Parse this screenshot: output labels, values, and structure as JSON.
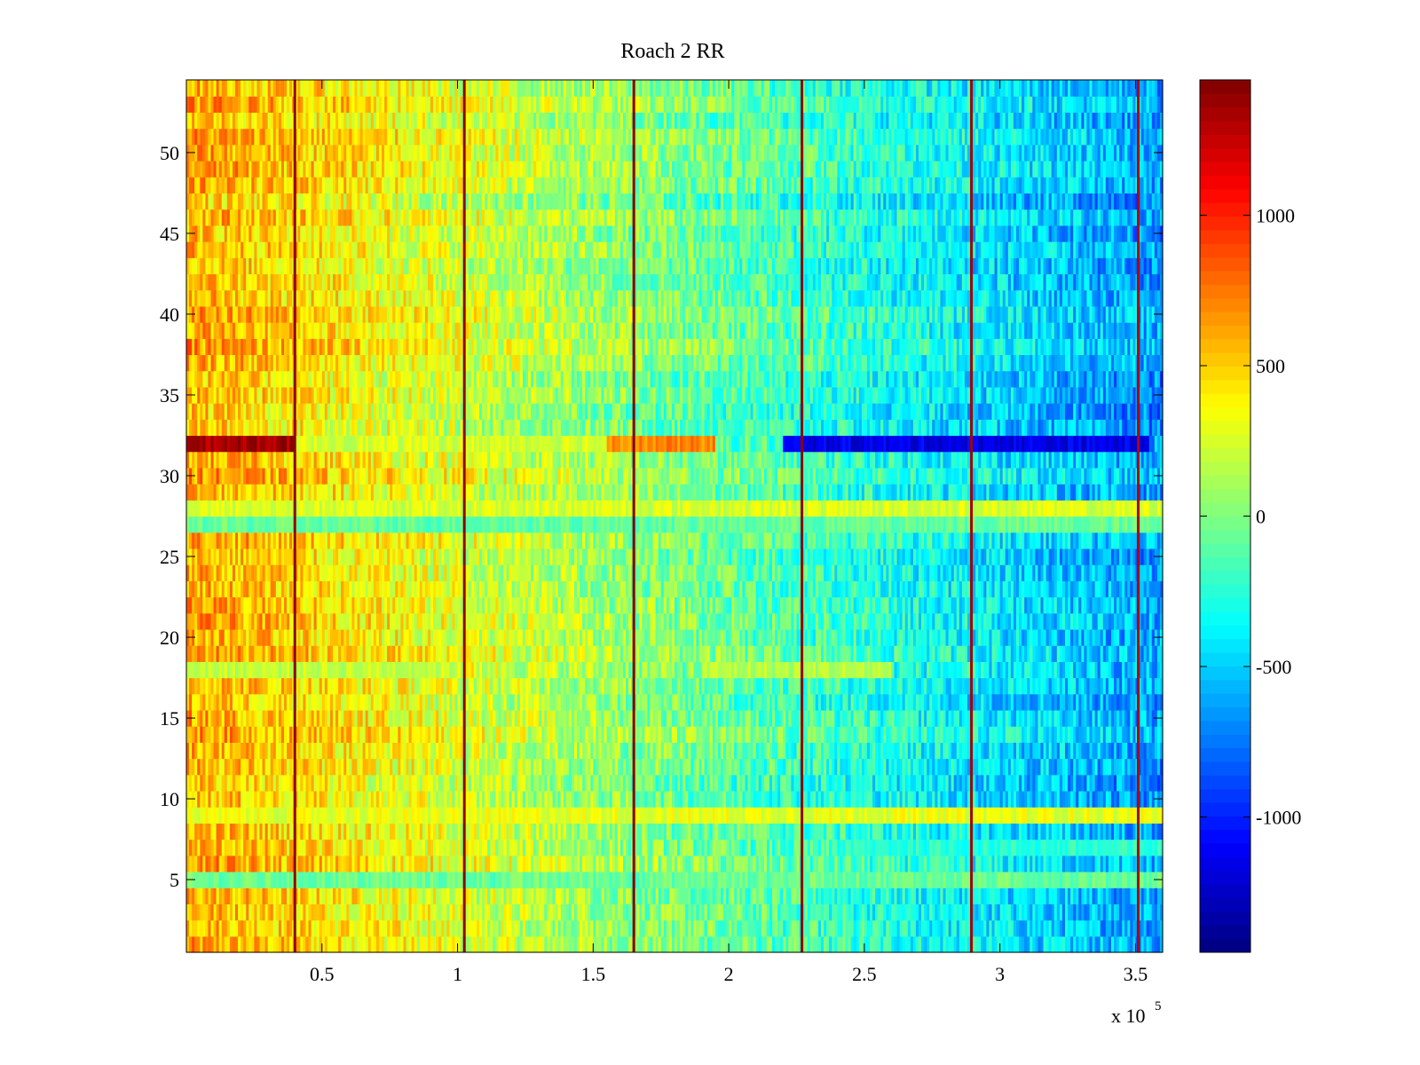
{
  "chart_data": {
    "type": "heatmap",
    "title": "Roach 2 RR",
    "xlabel": "",
    "ylabel": "",
    "x_multiplier_label": {
      "base": "x 10",
      "exponent": "5"
    },
    "xlim": [
      0,
      3.6
    ],
    "ylim": [
      0.5,
      54.5
    ],
    "x_ticks": [
      0.5,
      1,
      1.5,
      2,
      2.5,
      3,
      3.5
    ],
    "x_tick_labels": [
      "0.5",
      "1",
      "1.5",
      "2",
      "2.5",
      "3",
      "3.5"
    ],
    "y_ticks": [
      5,
      10,
      15,
      20,
      25,
      30,
      35,
      40,
      45,
      50
    ],
    "y_tick_labels": [
      "5",
      "10",
      "15",
      "20",
      "25",
      "30",
      "35",
      "40",
      "45",
      "50"
    ],
    "rows": 54,
    "colormap": "jet",
    "clim": [
      -1450,
      1450
    ],
    "colorbar": {
      "ticks": [
        1000,
        500,
        0,
        -500,
        -1000
      ],
      "tick_labels": [
        "1000",
        "500",
        "0",
        "-500",
        "-1000"
      ],
      "placement": "right"
    },
    "trend": {
      "x": [
        0,
        3.6
      ],
      "mean_value": [
        600,
        -650
      ]
    },
    "row_anomalies": [
      {
        "row": 32,
        "x": [
          0,
          0.4
        ],
        "value": 1350
      },
      {
        "row": 32,
        "x": [
          0.4,
          1.55
        ],
        "value": 250
      },
      {
        "row": 32,
        "x": [
          1.55,
          1.95
        ],
        "value": 700
      },
      {
        "row": 32,
        "x": [
          2.2,
          3.55
        ],
        "value": -1150
      },
      {
        "row": 28,
        "x": [
          0,
          3.6
        ],
        "value": 250
      },
      {
        "row": 9,
        "x": [
          0,
          3.6
        ],
        "value": 300
      },
      {
        "row": 7,
        "x": [
          2.4,
          3.6
        ],
        "value": -250
      },
      {
        "row": 18,
        "x": [
          0,
          1.0
        ],
        "value": 200
      },
      {
        "row": 27,
        "x": [
          0,
          3.6
        ],
        "value": -80
      },
      {
        "row": 5,
        "x": [
          0,
          3.6
        ],
        "value": -60
      },
      {
        "row": 18,
        "x": [
          1.9,
          2.6
        ],
        "value": 150
      }
    ],
    "vertical_lines": [
      {
        "x": 0.4,
        "value": 1400
      },
      {
        "x": 1.025,
        "value": 1400
      },
      {
        "x": 1.65,
        "value": 1450
      },
      {
        "x": 2.27,
        "value": 1400
      },
      {
        "x": 2.895,
        "value": 1350
      },
      {
        "x": 3.51,
        "value": 1300
      }
    ]
  }
}
